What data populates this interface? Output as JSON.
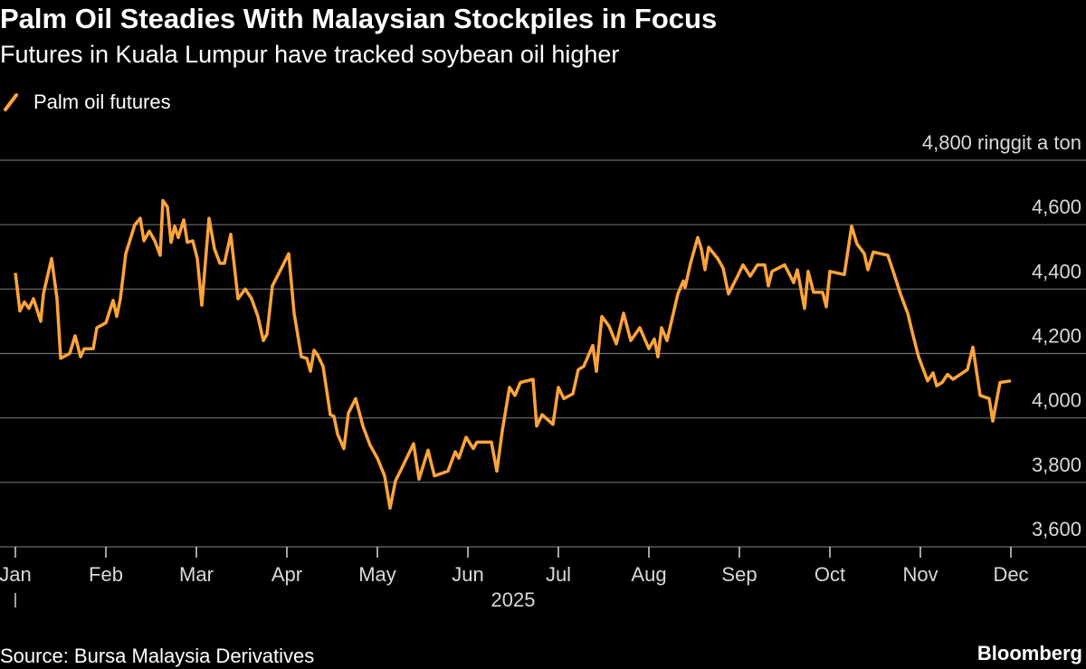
{
  "chart_data": {
    "type": "line",
    "title": "Palm Oil Steadies With Malaysian Stockpiles in Focus",
    "subtitle": "Futures in Kuala Lumpur have tracked soybean oil higher",
    "year_label": "2025",
    "source": "Source: Bursa Malaysia Derivatives",
    "brand": "Bloomberg",
    "grid": true,
    "xlim": [
      0,
      11
    ],
    "xticks": [
      {
        "value": 0,
        "label": "Jan"
      },
      {
        "value": 1,
        "label": "Feb"
      },
      {
        "value": 2,
        "label": "Mar"
      },
      {
        "value": 3,
        "label": "Apr"
      },
      {
        "value": 4,
        "label": "May"
      },
      {
        "value": 5,
        "label": "Jun"
      },
      {
        "value": 6,
        "label": "Jul"
      },
      {
        "value": 7,
        "label": "Aug"
      },
      {
        "value": 8,
        "label": "Sep"
      },
      {
        "value": 9,
        "label": "Oct"
      },
      {
        "value": 10,
        "label": "Nov"
      },
      {
        "value": 11,
        "label": "Dec"
      }
    ],
    "ylim": [
      3600,
      4800
    ],
    "yticks": [
      {
        "value": 3600,
        "label": "3,600"
      },
      {
        "value": 3800,
        "label": "3,800"
      },
      {
        "value": 4000,
        "label": "4,000"
      },
      {
        "value": 4200,
        "label": "4,200"
      },
      {
        "value": 4400,
        "label": "4,400"
      },
      {
        "value": 4600,
        "label": "4,600"
      },
      {
        "value": 4800,
        "label": "4,800 ringgit a ton"
      }
    ],
    "x": [
      0,
      0.05,
      0.1,
      0.15,
      0.2,
      0.28,
      0.31,
      0.4,
      0.46,
      0.5,
      0.6,
      0.66,
      0.72,
      0.76,
      0.86,
      0.9,
      1.0,
      1.08,
      1.12,
      1.16,
      1.22,
      1.32,
      1.38,
      1.42,
      1.48,
      1.54,
      1.6,
      1.63,
      1.68,
      1.72,
      1.76,
      1.8,
      1.86,
      1.9,
      1.96,
      2.01,
      2.06,
      2.14,
      2.2,
      2.26,
      2.31,
      2.38,
      2.46,
      2.54,
      2.61,
      2.68,
      2.74,
      2.78,
      2.84,
      2.94,
      3.02,
      3.08,
      3.16,
      3.22,
      3.26,
      3.3,
      3.34,
      3.4,
      3.48,
      3.52,
      3.56,
      3.63,
      3.68,
      3.76,
      3.84,
      3.92,
      4.0,
      4.08,
      4.14,
      4.2,
      4.28,
      4.4,
      4.46,
      4.56,
      4.63,
      4.78,
      4.86,
      4.9,
      4.98,
      5.06,
      5.1,
      5.26,
      5.32,
      5.38,
      5.46,
      5.52,
      5.58,
      5.72,
      5.76,
      5.82,
      5.94,
      6.0,
      6.06,
      6.16,
      6.22,
      6.28,
      6.38,
      6.42,
      6.48,
      6.56,
      6.64,
      6.72,
      6.8,
      6.9,
      7.0,
      7.06,
      7.1,
      7.14,
      7.2,
      7.32,
      7.38,
      7.4,
      7.46,
      7.54,
      7.58,
      7.62,
      7.66,
      7.76,
      7.82,
      7.88,
      7.98,
      8.04,
      8.12,
      8.2,
      8.28,
      8.32,
      8.36,
      8.5,
      8.6,
      8.64,
      8.72,
      8.76,
      8.82,
      8.92,
      8.96,
      9.0,
      9.16,
      9.24,
      9.3,
      9.38,
      9.42,
      9.48,
      9.64,
      9.7,
      9.78,
      9.86,
      9.92,
      9.98,
      10.08,
      10.14,
      10.18,
      10.24,
      10.3,
      10.36,
      10.52,
      10.58,
      10.66,
      10.76,
      10.8,
      10.88,
      11.0
    ],
    "series": [
      {
        "name": "Palm oil futures",
        "color": "#ffa43a",
        "values": [
          4450,
          4332,
          4360,
          4340,
          4370,
          4300,
          4385,
          4495,
          4370,
          4185,
          4200,
          4255,
          4190,
          4215,
          4215,
          4280,
          4295,
          4365,
          4315,
          4370,
          4510,
          4600,
          4620,
          4550,
          4580,
          4550,
          4505,
          4675,
          4655,
          4545,
          4595,
          4560,
          4615,
          4545,
          4550,
          4495,
          4350,
          4620,
          4525,
          4480,
          4480,
          4570,
          4370,
          4400,
          4370,
          4315,
          4240,
          4260,
          4410,
          4465,
          4510,
          4325,
          4190,
          4185,
          4145,
          4210,
          4195,
          4160,
          4010,
          4005,
          3950,
          3905,
          4015,
          4060,
          3975,
          3915,
          3875,
          3820,
          3720,
          3805,
          3850,
          3920,
          3810,
          3900,
          3820,
          3835,
          3895,
          3875,
          3940,
          3905,
          3925,
          3925,
          3835,
          3960,
          4095,
          4070,
          4110,
          4120,
          3975,
          4010,
          3980,
          4095,
          4060,
          4075,
          4150,
          4160,
          4225,
          4145,
          4315,
          4285,
          4230,
          4325,
          4240,
          4280,
          4215,
          4245,
          4190,
          4280,
          4240,
          4385,
          4425,
          4405,
          4480,
          4560,
          4525,
          4460,
          4530,
          4495,
          4465,
          4385,
          4440,
          4475,
          4440,
          4475,
          4475,
          4410,
          4455,
          4475,
          4420,
          4460,
          4340,
          4455,
          4390,
          4390,
          4345,
          4455,
          4445,
          4595,
          4540,
          4510,
          4460,
          4515,
          4505,
          4455,
          4385,
          4325,
          4255,
          4190,
          4115,
          4140,
          4100,
          4110,
          4135,
          4120,
          4150,
          4220,
          4070,
          4060,
          3990,
          4110,
          4115
        ]
      }
    ]
  }
}
